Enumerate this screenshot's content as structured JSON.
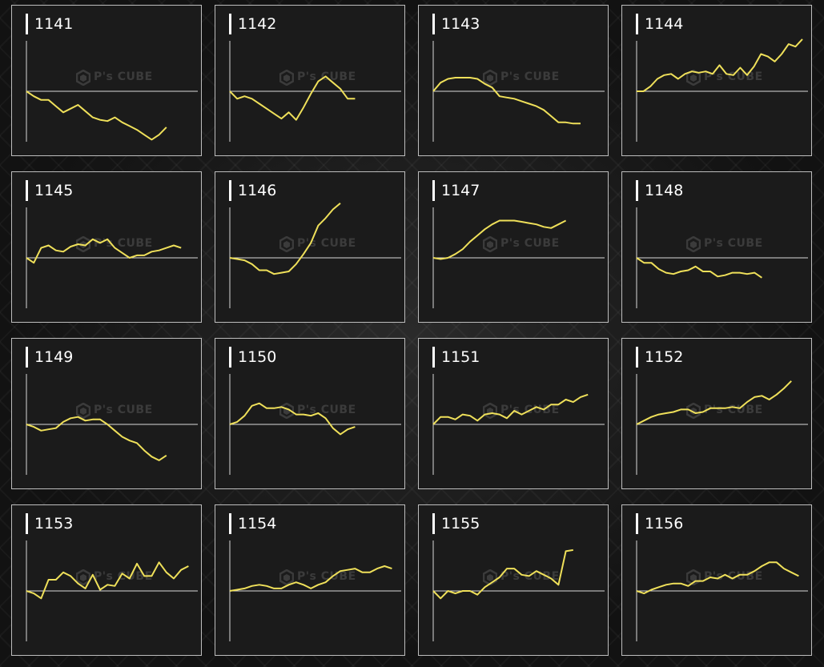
{
  "colors": {
    "line": "#efe05a",
    "axis": "#d8d8d8",
    "border": "#bdbdbd",
    "card": "#1b1b1b"
  },
  "watermark": {
    "main": "P's CUBE",
    "icon": "cube-logo-icon"
  },
  "chart_data": [
    {
      "type": "line",
      "title": "1141",
      "values": [
        0,
        -4,
        -7,
        -7,
        -12,
        -17,
        -14,
        -11,
        -16,
        -21,
        -23,
        -24,
        -21,
        -25,
        -28,
        -31,
        -35,
        -39,
        -35,
        -29
      ]
    },
    {
      "type": "line",
      "title": "1142",
      "values": [
        0,
        -6,
        -4,
        -6,
        -10,
        -14,
        -18,
        -22,
        -17,
        -23,
        -13,
        -2,
        8,
        12,
        7,
        2,
        -6,
        -6
      ]
    },
    {
      "type": "line",
      "title": "1143",
      "values": [
        0,
        7,
        10,
        11,
        11,
        11,
        10,
        6,
        3,
        -4,
        -5,
        -6,
        -8,
        -10,
        -12,
        -15,
        -20,
        -25,
        -25,
        -26,
        -26
      ]
    },
    {
      "type": "line",
      "title": "1144",
      "values": [
        0,
        0,
        4,
        10,
        13,
        14,
        10,
        14,
        16,
        15,
        16,
        14,
        21,
        14,
        13,
        19,
        13,
        20,
        30,
        28,
        24,
        30,
        38,
        36,
        42
      ]
    },
    {
      "type": "line",
      "title": "1145",
      "values": [
        0,
        -4,
        8,
        10,
        6,
        5,
        9,
        11,
        10,
        15,
        12,
        15,
        8,
        4,
        0,
        2,
        2,
        5,
        6,
        8,
        10,
        8
      ]
    },
    {
      "type": "line",
      "title": "1146",
      "values": [
        0,
        -1,
        -2,
        -5,
        -10,
        -10,
        -13,
        -12,
        -11,
        -5,
        3,
        12,
        26,
        32,
        39,
        44
      ]
    },
    {
      "type": "line",
      "title": "1147",
      "values": [
        0,
        -1,
        0,
        3,
        7,
        13,
        18,
        23,
        27,
        30,
        30,
        30,
        29,
        28,
        27,
        25,
        24,
        27,
        30
      ]
    },
    {
      "type": "line",
      "title": "1148",
      "values": [
        0,
        -4,
        -4,
        -9,
        -12,
        -13,
        -11,
        -10,
        -7,
        -11,
        -11,
        -15,
        -14,
        -12,
        -12,
        -13,
        -12,
        -16
      ]
    },
    {
      "type": "line",
      "title": "1149",
      "values": [
        0,
        -2,
        -5,
        -4,
        -3,
        2,
        5,
        6,
        3,
        4,
        4,
        0,
        -5,
        -10,
        -13,
        -15,
        -21,
        -26,
        -29,
        -25
      ]
    },
    {
      "type": "line",
      "title": "1150",
      "values": [
        0,
        2,
        7,
        15,
        17,
        13,
        13,
        14,
        12,
        8,
        8,
        7,
        9,
        5,
        -3,
        -8,
        -4,
        -2
      ]
    },
    {
      "type": "line",
      "title": "1151",
      "values": [
        0,
        6,
        6,
        4,
        8,
        7,
        3,
        8,
        9,
        8,
        5,
        11,
        8,
        11,
        14,
        12,
        16,
        16,
        20,
        18,
        22,
        24
      ]
    },
    {
      "type": "line",
      "title": "1152",
      "values": [
        0,
        3,
        6,
        8,
        9,
        10,
        12,
        12,
        9,
        10,
        13,
        13,
        13,
        14,
        13,
        18,
        22,
        23,
        20,
        24,
        29,
        35
      ]
    },
    {
      "type": "line",
      "title": "1153",
      "values": [
        0,
        -2,
        -6,
        9,
        9,
        15,
        12,
        6,
        2,
        13,
        1,
        5,
        4,
        14,
        10,
        22,
        12,
        12,
        23,
        15,
        10,
        17,
        20
      ]
    },
    {
      "type": "line",
      "title": "1154",
      "values": [
        0,
        1,
        2,
        4,
        5,
        4,
        2,
        2,
        5,
        7,
        5,
        2,
        5,
        7,
        12,
        16,
        17,
        18,
        15,
        15,
        18,
        20,
        18
      ]
    },
    {
      "type": "line",
      "title": "1155",
      "values": [
        0,
        -6,
        0,
        -2,
        0,
        0,
        -3,
        3,
        7,
        11,
        18,
        18,
        13,
        12,
        16,
        13,
        10,
        5,
        32,
        33
      ]
    },
    {
      "type": "line",
      "title": "1156",
      "values": [
        0,
        -2,
        1,
        3,
        5,
        6,
        6,
        4,
        8,
        8,
        11,
        10,
        13,
        10,
        13,
        13,
        16,
        20,
        23,
        23,
        18,
        15,
        12
      ]
    }
  ]
}
